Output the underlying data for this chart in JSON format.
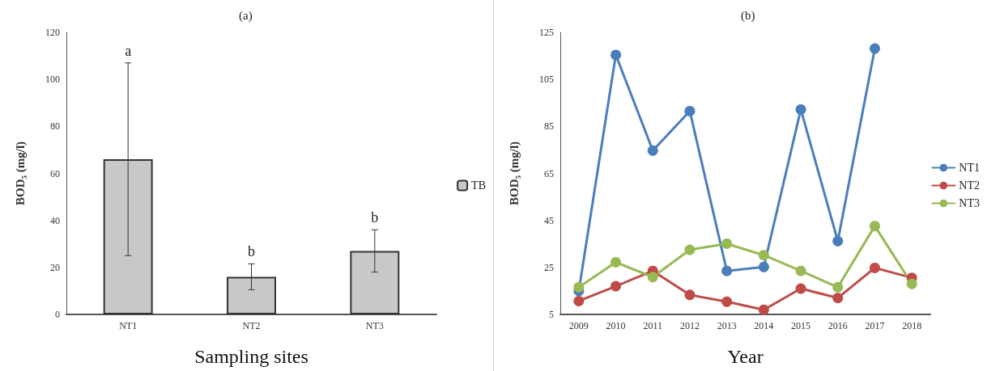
{
  "chart_data": [
    {
      "type": "bar",
      "title": "(a)",
      "xlabel": "Sampling sites",
      "ylabel": "BOD₅ (mg/l)",
      "categories": [
        "NT1",
        "NT2",
        "NT3"
      ],
      "series": [
        {
          "name": "TB",
          "color": "#c8c8c8",
          "values": [
            66,
            16,
            27
          ],
          "errors": [
            41,
            5.5,
            9
          ]
        }
      ],
      "ylim": [
        0,
        120
      ],
      "yticks": [
        0,
        20,
        40,
        60,
        80,
        100,
        120
      ],
      "grid": false,
      "legend": "right",
      "annotations": [
        "a",
        "b",
        "b"
      ]
    },
    {
      "type": "line",
      "title": "(b)",
      "xlabel": "Year",
      "ylabel": "BOD₅ (mg/l)",
      "categories": [
        "2009",
        "2010",
        "2011",
        "2012",
        "2013",
        "2014",
        "2015",
        "2016",
        "2017",
        "2018"
      ],
      "series": [
        {
          "name": "NT1",
          "color": "#4a7ebb",
          "values": [
            15,
            115.4,
            74.7,
            91.5,
            23.5,
            25.2,
            92.2,
            36.2,
            118.1,
            null
          ]
        },
        {
          "name": "NT2",
          "color": "#be4b48",
          "values": [
            10.7,
            17,
            23.5,
            13.3,
            10.4,
            7,
            16,
            12,
            24.8,
            20.6
          ]
        },
        {
          "name": "NT3",
          "color": "#98b954",
          "values": [
            16.6,
            27.2,
            20.9,
            32.5,
            35.1,
            30.2,
            23.5,
            16.6,
            42.6,
            18
          ]
        }
      ],
      "ylim": [
        5,
        125
      ],
      "yticks": [
        5,
        25,
        45,
        65,
        85,
        105,
        125
      ],
      "grid": false,
      "legend": "right",
      "marker": "circle",
      "line_style": "solid"
    }
  ]
}
